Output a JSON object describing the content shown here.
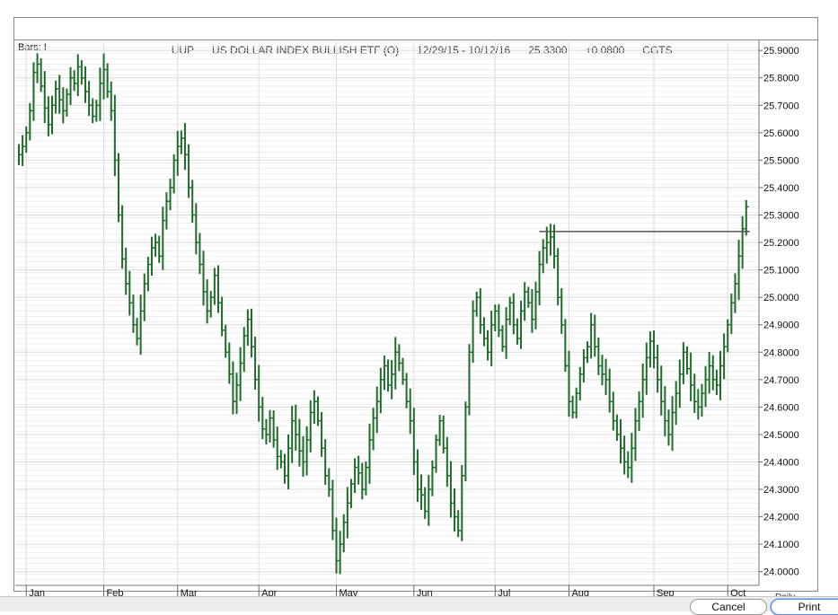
{
  "header": {
    "symbol": "UUP",
    "name": "US DOLLAR INDEX BULLISH ETF (O)",
    "date_range": "12/29/15 - 10/12/16",
    "last": "25.3300",
    "change": "+0.0800",
    "source": "CGTS"
  },
  "bars_label": "Bars: I-",
  "period_label": "Daily",
  "buttons": {
    "cancel": "Cancel",
    "print": "Print"
  },
  "colors": {
    "bar": "#1e6b2a",
    "grid": "#d8d8d8",
    "resistance": "#555555"
  },
  "chart_data": {
    "type": "ohlc-bar",
    "y_ticks": [
      "25.9000",
      "25.8000",
      "25.7000",
      "25.6000",
      "25.5000",
      "25.4000",
      "25.3000",
      "25.2000",
      "25.1000",
      "25.0000",
      "24.9000",
      "24.8000",
      "24.7000",
      "24.6000",
      "24.5000",
      "24.4000",
      "24.3000",
      "24.2000",
      "24.1000",
      "24.0000"
    ],
    "ylim": [
      23.95,
      25.93
    ],
    "grid": true,
    "months": [
      {
        "label": "Jan",
        "day": 2
      },
      {
        "label": "Feb",
        "day": 23
      },
      {
        "label": "Mar",
        "day": 43
      },
      {
        "label": "Apr",
        "day": 65
      },
      {
        "label": "May",
        "day": 86
      },
      {
        "label": "Jun",
        "day": 107
      },
      {
        "label": "Jul",
        "day": 129
      },
      {
        "label": "Aug",
        "day": 149
      },
      {
        "label": "Sep",
        "day": 172
      },
      {
        "label": "Oct",
        "day": 192
      }
    ],
    "total_days": 200,
    "closes": [
      25.52,
      25.55,
      25.6,
      25.68,
      25.82,
      25.85,
      25.77,
      25.69,
      25.63,
      25.7,
      25.76,
      25.72,
      25.68,
      25.74,
      25.8,
      25.78,
      25.84,
      25.8,
      25.75,
      25.7,
      25.66,
      25.7,
      25.78,
      25.83,
      25.75,
      25.68,
      25.5,
      25.3,
      25.14,
      25.05,
      24.98,
      24.9,
      24.85,
      24.95,
      25.05,
      25.12,
      25.18,
      25.2,
      25.15,
      25.28,
      25.35,
      25.4,
      25.5,
      25.55,
      25.58,
      25.52,
      25.4,
      25.3,
      25.2,
      25.12,
      25.02,
      24.95,
      25.0,
      25.08,
      24.98,
      24.88,
      24.8,
      24.72,
      24.62,
      24.68,
      24.76,
      24.86,
      24.92,
      24.82,
      24.7,
      24.6,
      24.52,
      24.5,
      24.56,
      24.48,
      24.42,
      24.4,
      24.35,
      24.45,
      24.55,
      24.5,
      24.44,
      24.4,
      24.48,
      24.58,
      24.62,
      24.55,
      24.45,
      24.35,
      24.3,
      24.15,
      24.04,
      24.1,
      24.18,
      24.25,
      24.32,
      24.38,
      24.36,
      24.3,
      24.38,
      24.48,
      24.56,
      24.62,
      24.7,
      24.75,
      24.68,
      24.72,
      24.8,
      24.76,
      24.7,
      24.62,
      24.55,
      24.4,
      24.3,
      24.28,
      24.22,
      24.3,
      24.38,
      24.48,
      24.55,
      24.45,
      24.35,
      24.25,
      24.2,
      24.15,
      24.35,
      24.6,
      24.8,
      24.95,
      25.0,
      24.9,
      24.85,
      24.8,
      24.9,
      24.95,
      24.88,
      24.82,
      24.92,
      24.98,
      24.9,
      24.85,
      24.95,
      25.02,
      24.98,
      24.92,
      25.02,
      25.12,
      25.18,
      25.2,
      25.22,
      25.15,
      25.0,
      24.9,
      24.75,
      24.62,
      24.58,
      24.65,
      24.72,
      24.78,
      24.82,
      24.9,
      24.82,
      24.75,
      24.72,
      24.7,
      24.62,
      24.55,
      24.5,
      24.45,
      24.4,
      24.38,
      24.45,
      24.55,
      24.62,
      24.7,
      24.78,
      24.84,
      24.78,
      24.7,
      24.62,
      24.55,
      24.5,
      24.58,
      24.65,
      24.72,
      24.8,
      24.74,
      24.68,
      24.62,
      24.6,
      24.65,
      24.7,
      24.75,
      24.7,
      24.68,
      24.75,
      24.82,
      24.9,
      24.98,
      25.05,
      25.15,
      25.25,
      25.33
    ],
    "resistance": {
      "y": 25.24,
      "from_day": 141,
      "to_day": 198
    }
  }
}
